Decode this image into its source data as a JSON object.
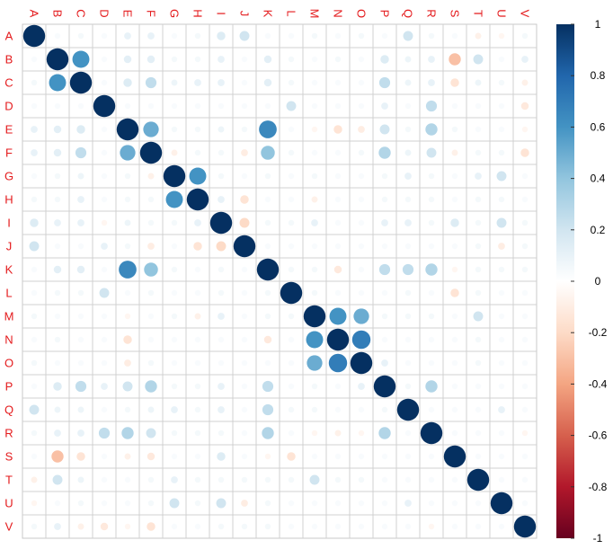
{
  "chart_data": {
    "type": "heatmap",
    "subtype": "correlation-circle-matrix",
    "title": "",
    "xlabel": "",
    "ylabel": "",
    "variables": [
      "A",
      "B",
      "C",
      "D",
      "E",
      "F",
      "G",
      "H",
      "I",
      "J",
      "K",
      "L",
      "M",
      "N",
      "O",
      "P",
      "Q",
      "R",
      "S",
      "T",
      "U",
      "V"
    ],
    "label_color": "#E41A1C",
    "grid": true,
    "colorbar": {
      "position": "right",
      "range": [
        -1,
        1
      ],
      "ticks": [
        "1",
        "0.8",
        "0.6",
        "0.4",
        "0.2",
        "0",
        "-0.2",
        "-0.4",
        "-0.6",
        "-0.8",
        "-1"
      ],
      "colors": [
        "#67001F",
        "#B2182B",
        "#D6604D",
        "#F4A582",
        "#FDDBC7",
        "#FFFFFF",
        "#D1E5F0",
        "#92C5DE",
        "#4393C3",
        "#2166AC",
        "#053061"
      ]
    },
    "values": [
      [
        1,
        0,
        0.05,
        0,
        0.1,
        0.1,
        0,
        0.05,
        0.15,
        0.2,
        0,
        0,
        0.05,
        0,
        0.05,
        0,
        0.2,
        0.05,
        0,
        -0.08,
        -0.05,
        0.05
      ],
      [
        0,
        1,
        0.6,
        0,
        0.12,
        0.12,
        0.05,
        0.05,
        0.1,
        0,
        0.12,
        0.05,
        0,
        0.05,
        0,
        0.15,
        0.08,
        0.1,
        -0.3,
        0.2,
        0,
        0.1
      ],
      [
        0.05,
        0.6,
        1,
        0,
        0.15,
        0.25,
        0.08,
        0.1,
        0.1,
        0,
        0.12,
        0.05,
        0,
        0,
        0,
        0.25,
        0.08,
        0.1,
        -0.15,
        0.08,
        0.05,
        -0.08
      ],
      [
        0,
        0,
        0,
        1,
        0,
        0,
        0,
        0,
        0,
        0,
        0,
        0.2,
        0,
        0,
        0,
        0.1,
        0,
        0.25,
        0,
        0,
        0,
        -0.12
      ],
      [
        0.1,
        0.12,
        0.15,
        0,
        1,
        0.5,
        0.05,
        0.05,
        0.08,
        0.05,
        0.65,
        0,
        -0.05,
        -0.15,
        -0.1,
        0.2,
        0.05,
        0.3,
        0.05,
        0,
        0,
        -0.05
      ],
      [
        0.1,
        0.12,
        0.25,
        0,
        0.5,
        1,
        -0.08,
        0.05,
        0.05,
        -0.1,
        0.4,
        0.05,
        0,
        0,
        0.05,
        0.3,
        0.08,
        0.2,
        -0.08,
        0.05,
        0.05,
        -0.15
      ],
      [
        0,
        0.05,
        0.08,
        0,
        0.05,
        -0.08,
        1,
        0.6,
        0.05,
        0,
        0.05,
        0,
        0.05,
        0,
        0,
        0.05,
        0.1,
        0.05,
        0,
        0.1,
        0.2,
        0
      ],
      [
        0.05,
        0.05,
        0.1,
        0,
        0.05,
        0.05,
        0.6,
        1,
        0.1,
        -0.15,
        0,
        0,
        -0.08,
        0,
        0,
        0.05,
        0.05,
        0.05,
        0,
        0.05,
        0.05,
        0
      ],
      [
        0.15,
        0.1,
        0.1,
        -0.05,
        0.08,
        0.05,
        0.05,
        0.1,
        1,
        -0.2,
        0.05,
        0.05,
        0.1,
        0,
        0,
        0.1,
        0.1,
        0.05,
        0.15,
        0.05,
        0.2,
        0.05
      ],
      [
        0.2,
        0,
        0,
        0.1,
        0.05,
        -0.1,
        0,
        -0.15,
        -0.2,
        1,
        0,
        0,
        0,
        0,
        0,
        0,
        0,
        0,
        0,
        0.05,
        -0.1,
        0.05
      ],
      [
        0,
        0.12,
        0.12,
        0,
        0.65,
        0.4,
        0.05,
        0,
        0.05,
        0,
        1,
        0.05,
        0.05,
        -0.12,
        0,
        0.25,
        0.25,
        0.3,
        -0.05,
        0.05,
        0.05,
        0.05
      ],
      [
        0,
        0.05,
        0.05,
        0.2,
        0,
        0.05,
        0,
        0,
        0.05,
        0,
        0.05,
        1,
        0.05,
        0,
        0,
        0,
        0.05,
        0,
        -0.15,
        0.05,
        0,
        0
      ],
      [
        0.05,
        0,
        0,
        0,
        -0.05,
        0,
        0.05,
        -0.08,
        0.1,
        0,
        0.05,
        0.05,
        1,
        0.6,
        0.5,
        0.05,
        0.05,
        0.05,
        0,
        0.2,
        0,
        0
      ],
      [
        0,
        0.05,
        0,
        0,
        -0.15,
        0,
        0,
        0,
        0,
        0,
        -0.12,
        0,
        0.6,
        1,
        0.7,
        0,
        0,
        0,
        0,
        0.05,
        0,
        0
      ],
      [
        0.05,
        0,
        0,
        0,
        -0.1,
        0.05,
        0,
        0,
        0,
        0,
        0,
        0,
        0.5,
        0.7,
        1,
        0.1,
        0,
        0,
        0,
        0.05,
        0,
        0
      ],
      [
        0,
        0.15,
        0.25,
        0.1,
        0.2,
        0.3,
        0.05,
        0.05,
        0.1,
        0,
        0.25,
        0,
        0.05,
        0,
        0.1,
        1,
        0.05,
        0.3,
        0,
        0,
        0,
        0
      ],
      [
        0.2,
        0.08,
        0.08,
        0,
        0.05,
        0.08,
        0.1,
        0.05,
        0.1,
        0,
        0.25,
        0.05,
        0.05,
        0,
        0,
        0.05,
        1,
        0,
        0,
        0,
        0.1,
        0
      ],
      [
        0.05,
        0.1,
        0.1,
        0.25,
        0.3,
        0.2,
        0.05,
        0.05,
        0.05,
        0,
        0.3,
        0,
        -0.05,
        -0.08,
        -0.05,
        0.3,
        0,
        1,
        0,
        0,
        0,
        -0.05
      ],
      [
        0,
        -0.3,
        -0.15,
        0,
        -0.08,
        -0.12,
        0,
        0,
        0.15,
        0,
        -0.05,
        -0.15,
        0,
        0,
        0,
        0,
        0,
        0,
        1,
        0,
        0,
        0
      ],
      [
        -0.08,
        0.2,
        0.08,
        0,
        0,
        0.05,
        0.1,
        0.05,
        0.05,
        0.05,
        0.05,
        0.05,
        0.2,
        0.05,
        0.05,
        0,
        0,
        0,
        0,
        1,
        0,
        0
      ],
      [
        -0.05,
        0,
        0.05,
        0,
        0,
        0.05,
        0.2,
        0.05,
        0.2,
        -0.1,
        0.05,
        0,
        0,
        0,
        0,
        0,
        0.1,
        0,
        0,
        0,
        1,
        0
      ],
      [
        0.05,
        0.1,
        -0.08,
        -0.12,
        -0.05,
        -0.15,
        0,
        0,
        0.05,
        0.05,
        0.05,
        0,
        0,
        0,
        0,
        0,
        0,
        -0.05,
        0,
        0,
        0,
        1
      ]
    ]
  }
}
